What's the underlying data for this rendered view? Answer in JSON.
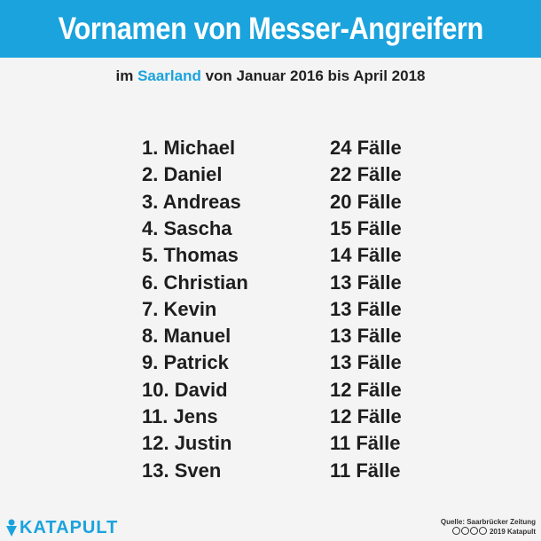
{
  "header": {
    "title": "Vornamen von Messer-Angreifern",
    "subtitle_prefix": "im ",
    "subtitle_highlight": "Saarland",
    "subtitle_suffix": " von Januar 2016 bis April 2018",
    "accent_color": "#1aa3dd"
  },
  "chart_data": {
    "type": "table",
    "title": "Vornamen von Messer-Angreifern",
    "subtitle": "im Saarland von Januar 2016 bis April 2018",
    "rows": [
      {
        "rank_name": "1. Michael",
        "cases_label": "24 Fälle",
        "value": 24
      },
      {
        "rank_name": "2. Daniel",
        "cases_label": "22 Fälle",
        "value": 22
      },
      {
        "rank_name": "3. Andreas",
        "cases_label": "20 Fälle",
        "value": 20
      },
      {
        "rank_name": "4. Sascha",
        "cases_label": "15 Fälle",
        "value": 15
      },
      {
        "rank_name": "5. Thomas",
        "cases_label": "14 Fälle",
        "value": 14
      },
      {
        "rank_name": "6. Christian",
        "cases_label": "13 Fälle",
        "value": 13
      },
      {
        "rank_name": "7. Kevin",
        "cases_label": "13 Fälle",
        "value": 13
      },
      {
        "rank_name": "8. Manuel",
        "cases_label": "13 Fälle",
        "value": 13
      },
      {
        "rank_name": "9. Patrick",
        "cases_label": "13 Fälle",
        "value": 13
      },
      {
        "rank_name": "10. David",
        "cases_label": "12 Fälle",
        "value": 12
      },
      {
        "rank_name": "11. Jens",
        "cases_label": "12 Fälle",
        "value": 12
      },
      {
        "rank_name": "12. Justin",
        "cases_label": "11 Fälle",
        "value": 11
      },
      {
        "rank_name": "13. Sven",
        "cases_label": "11 Fälle",
        "value": 11
      }
    ]
  },
  "footer": {
    "logo_text": "KATAPULT",
    "source_line": "Quelle: Saarbrücker Zeitung",
    "copyright_line": "2019 Katapult",
    "license_icons": [
      "cc-icon",
      "by-icon",
      "nc-icon",
      "nd-icon"
    ]
  }
}
